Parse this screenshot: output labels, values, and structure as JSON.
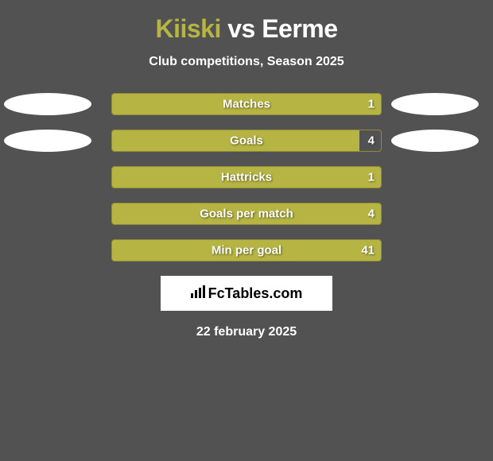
{
  "title": {
    "player1": "Kiiski",
    "vs": "vs",
    "player2": "Eerme"
  },
  "subtitle": "Club competitions, Season 2025",
  "colors": {
    "player1_color": "#b6b442",
    "player2_color": "#ffffff",
    "background": "#525252",
    "bar_fill": "#b6b442",
    "bar_border": "#8e8c36",
    "ellipse": "#ffffff"
  },
  "stats": [
    {
      "label": "Matches",
      "value": "1",
      "fill_percent": 100,
      "show_left_ellipse": true,
      "show_right_ellipse": true
    },
    {
      "label": "Goals",
      "value": "4",
      "fill_percent": 92,
      "show_left_ellipse": true,
      "show_right_ellipse": true
    },
    {
      "label": "Hattricks",
      "value": "1",
      "fill_percent": 100,
      "show_left_ellipse": false,
      "show_right_ellipse": false
    },
    {
      "label": "Goals per match",
      "value": "4",
      "fill_percent": 100,
      "show_left_ellipse": false,
      "show_right_ellipse": false
    },
    {
      "label": "Min per goal",
      "value": "41",
      "fill_percent": 100,
      "show_left_ellipse": false,
      "show_right_ellipse": false
    }
  ],
  "logo": {
    "text": "FcTables.com",
    "icon": "📊"
  },
  "date": "22 february 2025"
}
